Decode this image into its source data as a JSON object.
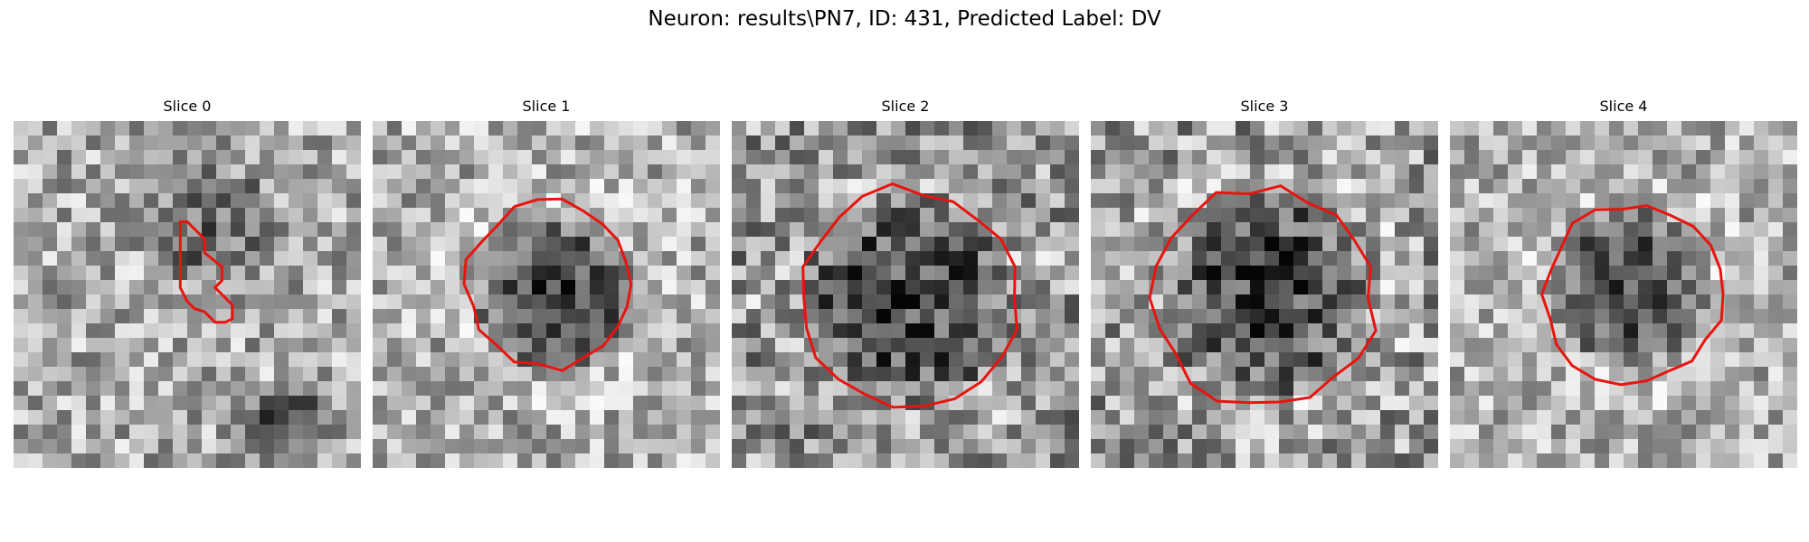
{
  "figure": {
    "title": "Neuron: results\\PN7, ID: 431, Predicted Label: DV"
  },
  "colors": {
    "contour": "#e8140f",
    "background": "#ffffff"
  },
  "slices": [
    {
      "label": "Slice 0",
      "contour_shape": "small-irregular",
      "tone": "light-noisy"
    },
    {
      "label": "Slice 1",
      "contour_shape": "medium-circle",
      "tone": "light-bright-surround"
    },
    {
      "label": "Slice 2",
      "contour_shape": "large-circle",
      "tone": "mid-gray"
    },
    {
      "label": "Slice 3",
      "contour_shape": "large-circle",
      "tone": "mid-gray"
    },
    {
      "label": "Slice 4",
      "contour_shape": "medium-circle",
      "tone": "light-bright-surround"
    }
  ]
}
